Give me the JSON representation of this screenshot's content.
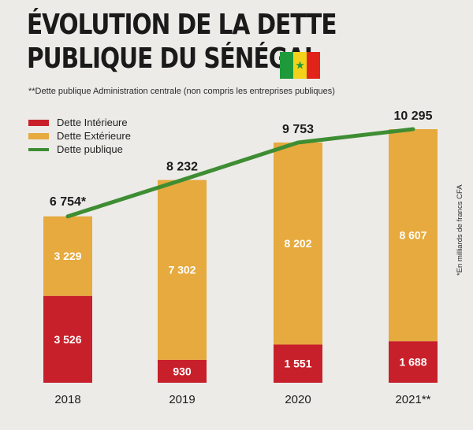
{
  "header": {
    "title_line1": "ÉVOLUTION DE LA DETTE",
    "title_line2": "PUBLIQUE DU SÉNÉGAL",
    "subtitle": "**Dette publique Administration centrale (non compris les entreprises publiques)",
    "unit_note": "*En milliards de francs CFA"
  },
  "colors": {
    "interieure": "#c8202a",
    "exterieure": "#e6aa3e",
    "publique": "#3e8d33"
  },
  "chart_data": {
    "type": "bar",
    "stacked": true,
    "categories": [
      "2018",
      "2019",
      "2020",
      "2021**"
    ],
    "series": [
      {
        "name": "Dette Intérieure",
        "values": [
          3526,
          930,
          1551,
          1688
        ],
        "labels": [
          "3 526",
          "930",
          "1 551",
          "1 688"
        ]
      },
      {
        "name": "Dette Extérieure",
        "values": [
          3229,
          7302,
          8202,
          8607
        ],
        "labels": [
          "3 229",
          "7 302",
          "8 202",
          "8 607"
        ]
      },
      {
        "name": "Dette publique",
        "type": "line",
        "values": [
          6754,
          8232,
          9753,
          10295
        ],
        "labels": [
          "6 754*",
          "8 232",
          "9 753",
          "10 295"
        ]
      }
    ],
    "ylim": [
      0,
      10295
    ],
    "grid": false,
    "legend": "top-left"
  }
}
